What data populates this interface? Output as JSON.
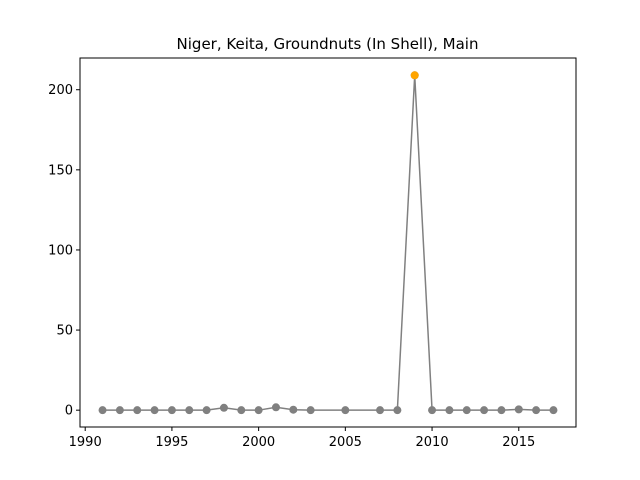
{
  "chart_data": {
    "type": "line",
    "title": "Niger, Keita, Groundnuts (In Shell), Main",
    "xlabel": "",
    "ylabel": "",
    "xlim": [
      1989.7,
      2018.3
    ],
    "ylim": [
      -10.5,
      219.8
    ],
    "x_ticks": [
      1990,
      1995,
      2000,
      2005,
      2010,
      2015
    ],
    "y_ticks": [
      0,
      50,
      100,
      150,
      200
    ],
    "grid": false,
    "legend": "none",
    "colors": {
      "line": "#808080",
      "point": "#808080",
      "highlight": "#ffa500"
    },
    "series": [
      {
        "x": [
          1991,
          1992,
          1993,
          1994,
          1995,
          1996,
          1997,
          1998,
          1999,
          2000,
          2001,
          2002,
          2003,
          2005,
          2007,
          2008,
          2009,
          2010,
          2011,
          2012,
          2013,
          2014,
          2015,
          2016,
          2017
        ],
        "y": [
          0,
          0,
          0,
          0,
          0,
          0,
          0,
          1.5,
          0,
          0,
          1.8,
          0.3,
          0,
          0,
          0,
          0,
          209,
          0,
          0,
          0,
          0,
          0,
          0.5,
          0,
          0
        ]
      }
    ],
    "highlight_points": [
      {
        "x": 2009,
        "y": 209
      }
    ]
  }
}
